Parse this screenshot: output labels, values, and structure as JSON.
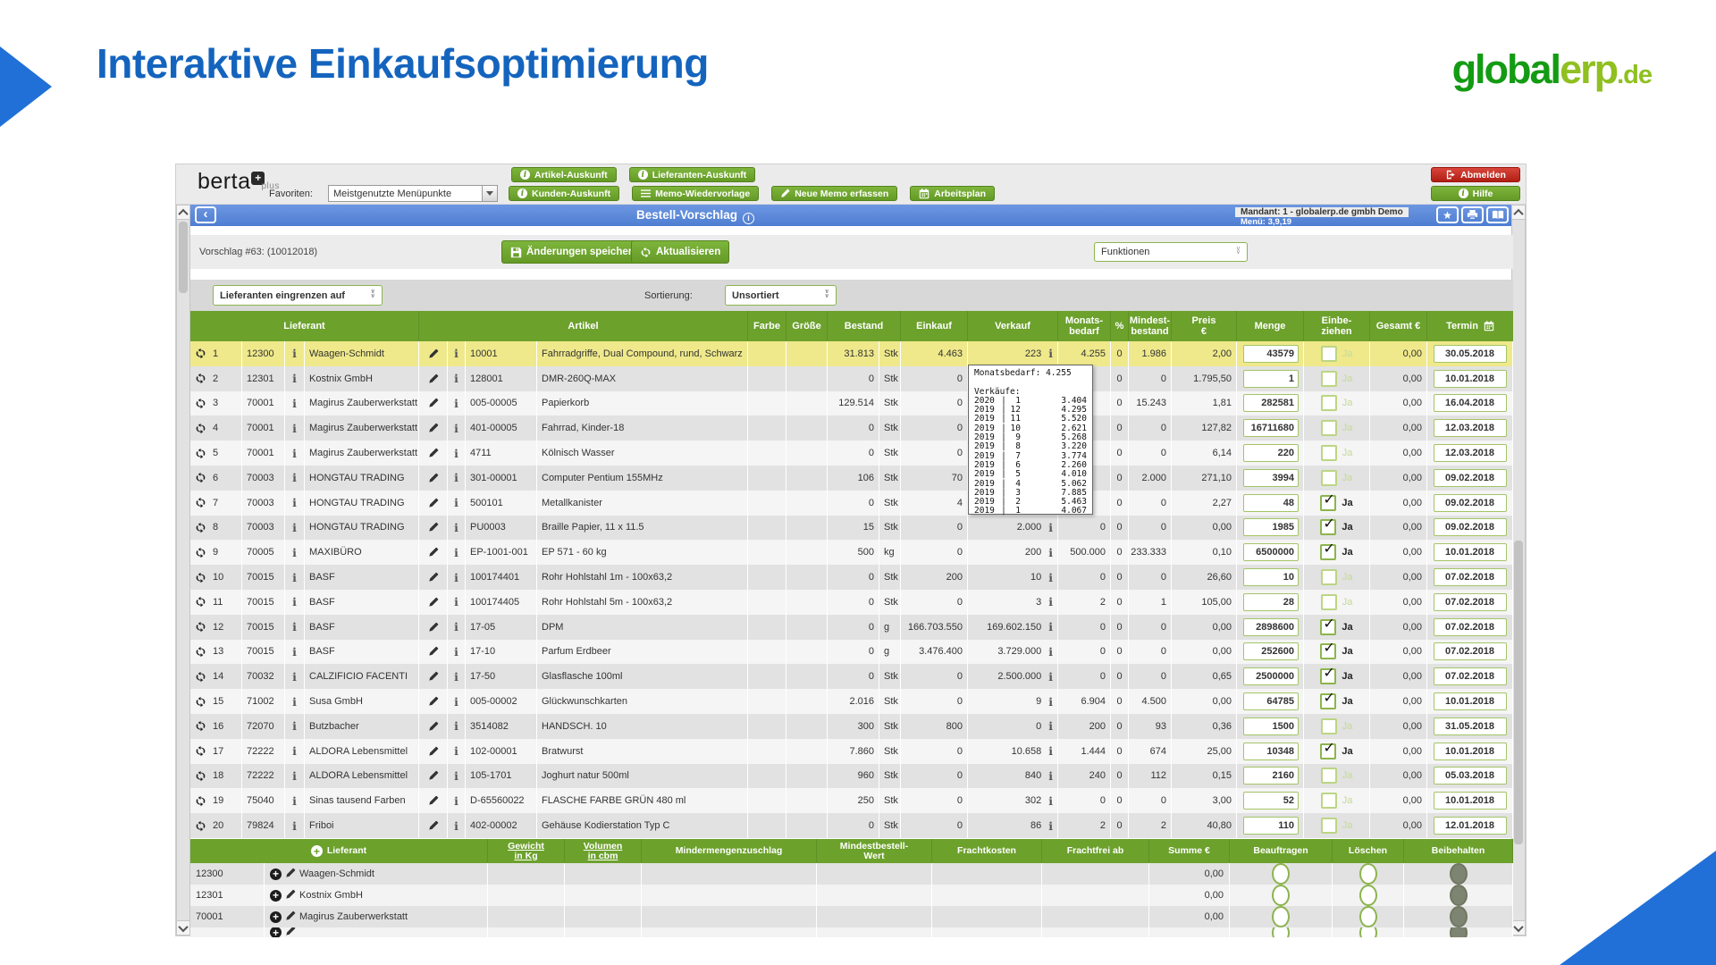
{
  "slide": {
    "title": "Interaktive Einkaufsoptimierung",
    "brand": {
      "part1": "global",
      "part2": "erp",
      "part3": ".de"
    }
  },
  "colors": {
    "accent_green": "#6ca12c",
    "button_green": "#71a82d",
    "logout_red": "#c9302c",
    "titlebar_blue": "#5b87d8",
    "slide_blue": "#1464be",
    "highlight_yellow": "#efe98b"
  },
  "app": {
    "logo": {
      "name": "berta",
      "plus_badge": "+",
      "suffix": "plus"
    },
    "favorites_label": "Favoriten:",
    "favorites_value": "Meistgenutzte Menüpunkte",
    "buttons": {
      "artikel": "Artikel-Auskunft",
      "lieferanten": "Lieferanten-Auskunft",
      "kunden": "Kunden-Auskunft",
      "memo": "Memo-Wiedervorlage",
      "neue_memo": "Neue Memo erfassen",
      "arbeitsplan": "Arbeitsplan",
      "abmelden": "Abmelden",
      "hilfe": "Hilfe"
    },
    "titlebar": {
      "back": "‹",
      "title": "Bestell-Vorschlag",
      "mandant": "Mandant: 1 - globalerp.de gmbh Demo",
      "menue": "Menü: 3,9,19"
    },
    "toolbar": {
      "vorschlag": "Vorschlag #63: (10012018)",
      "save": "Änderungen speichern",
      "refresh": "Aktualisieren",
      "funktionen": "Funktionen"
    },
    "filters": {
      "supplier_filter": "Lieferanten eingrenzen auf",
      "sort_label": "Sortierung:",
      "sort_value": "Unsortiert"
    }
  },
  "table": {
    "ja_label": "Ja",
    "headers": {
      "lieferant": "Lieferant",
      "artikel": "Artikel",
      "farbe": "Farbe",
      "groesse": "Größe",
      "bestand": "Bestand",
      "einkauf": "Einkauf",
      "verkauf": "Verkauf",
      "monatsbedarf": "Monats-\nbedarf",
      "pct": "%",
      "mindestbestand": "Mindest-\nbestand",
      "preis": "Preis\n€",
      "menge": "Menge",
      "einbeziehen": "Einbe-\nziehen",
      "gesamt": "Gesamt €",
      "termin": "Termin"
    },
    "rows": [
      {
        "n": "1",
        "sid": "12300",
        "sup": "Waagen-Schmidt",
        "aid": "10001",
        "art": "Fahrradgriffe, Dual Compound, rund, Schwarz",
        "best": "31.813",
        "unit": "Stk",
        "ein": "4.463",
        "ver": "223",
        "info": true,
        "mb": "4.255",
        "pct": "0",
        "min": "1.986",
        "preis": "2,00",
        "menge": "43579",
        "ja": false,
        "ges": "0,00",
        "termin": "30.05.2018",
        "hl": true
      },
      {
        "n": "2",
        "sid": "12301",
        "sup": "Kostnix GmbH",
        "aid": "128001",
        "art": "DMR-260Q-MAX",
        "best": "0",
        "unit": "Stk",
        "ein": "0",
        "ver": "",
        "info": false,
        "mb": "",
        "pct": "0",
        "min": "0",
        "preis": "1.795,50",
        "menge": "1",
        "ja": false,
        "ges": "0,00",
        "termin": "10.01.2018",
        "hl": false
      },
      {
        "n": "3",
        "sid": "70001",
        "sup": "Magirus Zauberwerkstatt",
        "aid": "005-00005",
        "art": "Papierkorb",
        "best": "129.514",
        "unit": "Stk",
        "ein": "0",
        "ver": "",
        "info": false,
        "mb": "",
        "pct": "0",
        "min": "15.243",
        "preis": "1,81",
        "menge": "282581",
        "ja": false,
        "ges": "0,00",
        "termin": "16.04.2018",
        "hl": false
      },
      {
        "n": "4",
        "sid": "70001",
        "sup": "Magirus Zauberwerkstatt",
        "aid": "401-00005",
        "art": "Fahrrad, Kinder-18",
        "best": "0",
        "unit": "Stk",
        "ein": "0",
        "ver": "",
        "info": false,
        "mb": "",
        "pct": "0",
        "min": "0",
        "preis": "127,82",
        "menge": "16711680",
        "ja": false,
        "ges": "0,00",
        "termin": "12.03.2018",
        "hl": false
      },
      {
        "n": "5",
        "sid": "70001",
        "sup": "Magirus Zauberwerkstatt",
        "aid": "4711",
        "art": "Kölnisch Wasser",
        "best": "0",
        "unit": "Stk",
        "ein": "0",
        "ver": "",
        "info": false,
        "mb": "",
        "pct": "0",
        "min": "0",
        "preis": "6,14",
        "menge": "220",
        "ja": false,
        "ges": "0,00",
        "termin": "12.03.2018",
        "hl": false
      },
      {
        "n": "6",
        "sid": "70003",
        "sup": "HONGTAU TRADING",
        "aid": "301-00001",
        "art": "Computer Pentium 155MHz",
        "best": "106",
        "unit": "Stk",
        "ein": "70",
        "ver": "",
        "info": false,
        "mb": "",
        "pct": "0",
        "min": "2.000",
        "preis": "271,10",
        "menge": "3994",
        "ja": false,
        "ges": "0,00",
        "termin": "09.02.2018",
        "hl": false
      },
      {
        "n": "7",
        "sid": "70003",
        "sup": "HONGTAU TRADING",
        "aid": "500101",
        "art": "Metallkanister",
        "best": "0",
        "unit": "Stk",
        "ein": "4",
        "ver": "",
        "info": false,
        "mb": "",
        "pct": "0",
        "min": "0",
        "preis": "2,27",
        "menge": "48",
        "ja": true,
        "ges": "0,00",
        "termin": "09.02.2018",
        "hl": false
      },
      {
        "n": "8",
        "sid": "70003",
        "sup": "HONGTAU TRADING",
        "aid": "PU0003",
        "art": "Braille Papier, 11 x 11.5",
        "best": "15",
        "unit": "Stk",
        "ein": "0",
        "ver": "2.000",
        "info": true,
        "mb": "0",
        "pct": "0",
        "min": "0",
        "preis": "0,00",
        "menge": "1985",
        "ja": true,
        "ges": "0,00",
        "termin": "09.02.2018",
        "hl": false
      },
      {
        "n": "9",
        "sid": "70005",
        "sup": "MAXIBÜRO",
        "aid": "EP-1001-001",
        "art": "EP 571 - 60 kg",
        "best": "500",
        "unit": "kg",
        "ein": "0",
        "ver": "200",
        "info": true,
        "mb": "500.000",
        "pct": "0",
        "min": "233.333",
        "preis": "0,10",
        "menge": "6500000",
        "ja": true,
        "ges": "0,00",
        "termin": "10.01.2018",
        "hl": false
      },
      {
        "n": "10",
        "sid": "70015",
        "sup": "BASF",
        "aid": "100174401",
        "art": "Rohr Hohlstahl 1m - 100x63,2",
        "best": "0",
        "unit": "Stk",
        "ein": "200",
        "ver": "10",
        "info": true,
        "mb": "0",
        "pct": "0",
        "min": "0",
        "preis": "26,60",
        "menge": "10",
        "ja": false,
        "ges": "0,00",
        "termin": "07.02.2018",
        "hl": false
      },
      {
        "n": "11",
        "sid": "70015",
        "sup": "BASF",
        "aid": "100174405",
        "art": "Rohr Hohlstahl 5m - 100x63,2",
        "best": "0",
        "unit": "Stk",
        "ein": "0",
        "ver": "3",
        "info": true,
        "mb": "2",
        "pct": "0",
        "min": "1",
        "preis": "105,00",
        "menge": "28",
        "ja": false,
        "ges": "0,00",
        "termin": "07.02.2018",
        "hl": false
      },
      {
        "n": "12",
        "sid": "70015",
        "sup": "BASF",
        "aid": "17-05",
        "art": "DPM",
        "best": "0",
        "unit": "g",
        "ein": "166.703.550",
        "ver": "169.602.150",
        "info": true,
        "mb": "0",
        "pct": "0",
        "min": "0",
        "preis": "0,00",
        "menge": "2898600",
        "ja": true,
        "ges": "0,00",
        "termin": "07.02.2018",
        "hl": false
      },
      {
        "n": "13",
        "sid": "70015",
        "sup": "BASF",
        "aid": "17-10",
        "art": "Parfum Erdbeer",
        "best": "0",
        "unit": "g",
        "ein": "3.476.400",
        "ver": "3.729.000",
        "info": true,
        "mb": "0",
        "pct": "0",
        "min": "0",
        "preis": "0,00",
        "menge": "252600",
        "ja": true,
        "ges": "0,00",
        "termin": "07.02.2018",
        "hl": false
      },
      {
        "n": "14",
        "sid": "70032",
        "sup": "CALZIFICIO FACENTI",
        "aid": "17-50",
        "art": "Glasflasche 100ml",
        "best": "0",
        "unit": "Stk",
        "ein": "0",
        "ver": "2.500.000",
        "info": true,
        "mb": "0",
        "pct": "0",
        "min": "0",
        "preis": "0,65",
        "menge": "2500000",
        "ja": true,
        "ges": "0,00",
        "termin": "07.02.2018",
        "hl": false
      },
      {
        "n": "15",
        "sid": "71002",
        "sup": "Susa GmbH",
        "aid": "005-00002",
        "art": "Glückwunschkarten",
        "best": "2.016",
        "unit": "Stk",
        "ein": "0",
        "ver": "9",
        "info": true,
        "mb": "6.904",
        "pct": "0",
        "min": "4.500",
        "preis": "0,00",
        "menge": "64785",
        "ja": true,
        "ges": "0,00",
        "termin": "10.01.2018",
        "hl": false
      },
      {
        "n": "16",
        "sid": "72070",
        "sup": "Butzbacher",
        "aid": "3514082",
        "art": "HANDSCH. 10",
        "best": "300",
        "unit": "Stk",
        "ein": "800",
        "ver": "0",
        "info": true,
        "mb": "200",
        "pct": "0",
        "min": "93",
        "preis": "0,36",
        "menge": "1500",
        "ja": false,
        "ges": "0,00",
        "termin": "31.05.2018",
        "hl": false
      },
      {
        "n": "17",
        "sid": "72222",
        "sup": "ALDORA Lebensmittel",
        "aid": "102-00001",
        "art": "Bratwurst",
        "best": "7.860",
        "unit": "Stk",
        "ein": "0",
        "ver": "10.658",
        "info": true,
        "mb": "1.444",
        "pct": "0",
        "min": "674",
        "preis": "25,00",
        "menge": "10348",
        "ja": true,
        "ges": "0,00",
        "termin": "10.01.2018",
        "hl": false
      },
      {
        "n": "18",
        "sid": "72222",
        "sup": "ALDORA Lebensmittel",
        "aid": "105-1701",
        "art": "Joghurt natur 500ml",
        "best": "960",
        "unit": "Stk",
        "ein": "0",
        "ver": "840",
        "info": true,
        "mb": "240",
        "pct": "0",
        "min": "112",
        "preis": "0,15",
        "menge": "2160",
        "ja": false,
        "ges": "0,00",
        "termin": "05.03.2018",
        "hl": false
      },
      {
        "n": "19",
        "sid": "75040",
        "sup": "Sinas tausend Farben",
        "aid": "D-65560022",
        "art": "FLASCHE FARBE GRÜN 480 ml",
        "best": "250",
        "unit": "Stk",
        "ein": "0",
        "ver": "302",
        "info": true,
        "mb": "0",
        "pct": "0",
        "min": "0",
        "preis": "3,00",
        "menge": "52",
        "ja": false,
        "ges": "0,00",
        "termin": "10.01.2018",
        "hl": false
      },
      {
        "n": "20",
        "sid": "79824",
        "sup": "Friboi",
        "aid": "402-00002",
        "art": "Gehäuse Kodierstation Typ C",
        "best": "0",
        "unit": "Stk",
        "ein": "0",
        "ver": "86",
        "info": true,
        "mb": "2",
        "pct": "0",
        "min": "2",
        "preis": "40,80",
        "menge": "110",
        "ja": false,
        "ges": "0,00",
        "termin": "12.01.2018",
        "hl": false
      }
    ]
  },
  "tooltip": {
    "title": "Monatsbedarf: 4.255",
    "sales_label": "Verkäufe:",
    "sales": [
      [
        "2020",
        "1",
        "3.404"
      ],
      [
        "2019",
        "12",
        "4.295"
      ],
      [
        "2019",
        "11",
        "5.520"
      ],
      [
        "2019",
        "10",
        "2.621"
      ],
      [
        "2019",
        "9",
        "5.268"
      ],
      [
        "2019",
        "8",
        "3.220"
      ],
      [
        "2019",
        "7",
        "3.774"
      ],
      [
        "2019",
        "6",
        "2.260"
      ],
      [
        "2019",
        "5",
        "4.010"
      ],
      [
        "2019",
        "4",
        "5.062"
      ],
      [
        "2019",
        "3",
        "7.885"
      ],
      [
        "2019",
        "2",
        "5.463"
      ],
      [
        "2019",
        "1",
        "4.067"
      ]
    ]
  },
  "bottom": {
    "headers": [
      "Lieferant",
      "Gewicht\nin Kg",
      "Volumen\nin cbm",
      "Mindermengenzuschlag",
      "Mindestbestell-\nWert",
      "Frachtkosten",
      "Frachtfrei ab",
      "Summe €",
      "Beauftragen",
      "Löschen",
      "Beibehalten"
    ],
    "rows": [
      {
        "id": "12300",
        "name": "Waagen-Schmidt",
        "summe": "0,00",
        "partial": false
      },
      {
        "id": "12301",
        "name": "Kostnix GmbH",
        "summe": "0,00",
        "partial": false
      },
      {
        "id": "70001",
        "name": "Magirus Zauberwerkstatt",
        "summe": "0,00",
        "partial": false
      },
      {
        "id": "",
        "name": "",
        "summe": "",
        "partial": true
      }
    ]
  }
}
